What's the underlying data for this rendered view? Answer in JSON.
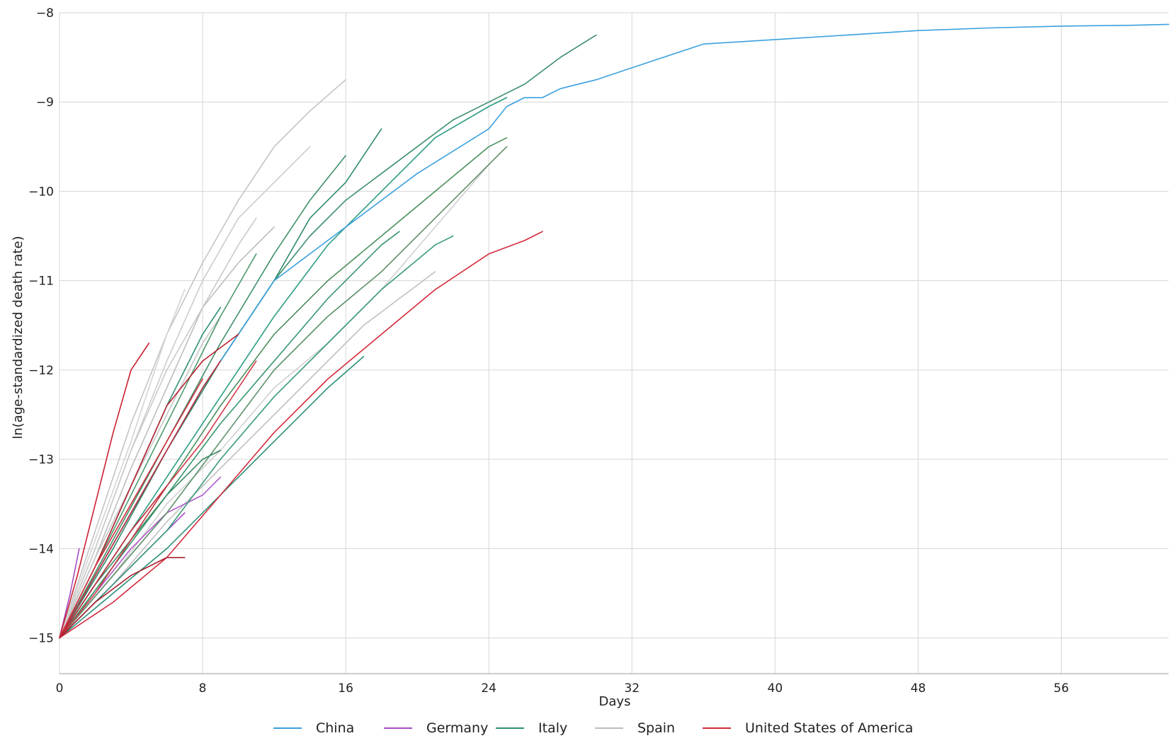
{
  "chart_data": {
    "type": "line",
    "title": "",
    "xlabel": "Days",
    "ylabel": "ln(age-standardized death rate)",
    "xlim": [
      0,
      62
    ],
    "ylim": [
      -15.4,
      -8
    ],
    "xticks": [
      0,
      8,
      16,
      24,
      32,
      40,
      48,
      56
    ],
    "yticks": [
      -15,
      -14,
      -13,
      -12,
      -11,
      -10,
      -9,
      -8
    ],
    "grid": true,
    "legend_position": "bottom-center",
    "legend": [
      {
        "name": "China",
        "color": "#3aa0de"
      },
      {
        "name": "Germany",
        "color": "#a64dc4"
      },
      {
        "name": "Italy",
        "color": "#2f8f73"
      },
      {
        "name": "Spain",
        "color": "#bdbdbd"
      },
      {
        "name": "United States of America",
        "color": "#d42b3c"
      }
    ],
    "series": [
      {
        "group": "China",
        "color": "#3aa0de",
        "x": [
          0,
          4,
          8,
          12,
          16,
          20,
          24,
          25,
          26,
          27,
          28,
          30,
          33,
          36,
          40,
          44,
          48,
          52,
          56,
          60,
          62
        ],
        "y": [
          -15,
          -13.6,
          -12.2,
          -11.0,
          -10.4,
          -9.8,
          -9.3,
          -9.05,
          -8.95,
          -8.95,
          -8.85,
          -8.75,
          -8.55,
          -8.35,
          -8.3,
          -8.25,
          -8.2,
          -8.17,
          -8.15,
          -8.14,
          -8.13
        ]
      },
      {
        "group": "Italy",
        "color": "#3d8f6c",
        "x": [
          0,
          2,
          4,
          6,
          8,
          10,
          12,
          14,
          16,
          18,
          20,
          22,
          24,
          26,
          28,
          30
        ],
        "y": [
          -15,
          -14.3,
          -13.6,
          -12.9,
          -12.2,
          -11.6,
          -11.0,
          -10.5,
          -10.1,
          -9.8,
          -9.5,
          -9.2,
          -9.0,
          -8.8,
          -8.5,
          -8.25
        ]
      },
      {
        "group": "Italy",
        "color": "#2a9d83",
        "x": [
          0,
          3,
          6,
          9,
          12,
          15,
          18,
          21,
          24,
          25
        ],
        "y": [
          -15,
          -14.1,
          -13.2,
          -12.3,
          -11.4,
          -10.6,
          -10.0,
          -9.4,
          -9.05,
          -8.95
        ]
      },
      {
        "group": "Italy",
        "color": "#4a8f5c",
        "x": [
          0,
          3,
          6,
          9,
          12,
          15,
          18,
          21,
          24,
          25
        ],
        "y": [
          -15,
          -14.2,
          -13.3,
          -12.4,
          -11.6,
          -11.0,
          -10.5,
          -10.0,
          -9.5,
          -9.4
        ]
      },
      {
        "group": "Italy",
        "color": "#5a8f6a",
        "x": [
          0,
          3,
          6,
          9,
          12,
          15,
          18,
          21,
          24,
          25
        ],
        "y": [
          -15,
          -14.3,
          -13.6,
          -12.8,
          -12.0,
          -11.4,
          -10.9,
          -10.3,
          -9.7,
          -9.5
        ]
      },
      {
        "group": "Italy",
        "color": "#3a9a7a",
        "x": [
          0,
          3,
          6,
          9,
          12,
          15,
          18,
          21,
          22
        ],
        "y": [
          -15,
          -14.4,
          -13.8,
          -13.0,
          -12.3,
          -11.7,
          -11.1,
          -10.6,
          -10.5
        ]
      },
      {
        "group": "Italy",
        "color": "#2f8a6d",
        "x": [
          0,
          3,
          6,
          9,
          12,
          14,
          16,
          18
        ],
        "y": [
          -15,
          -14.0,
          -12.9,
          -11.9,
          -11.0,
          -10.3,
          -9.9,
          -9.3
        ]
      },
      {
        "group": "Italy",
        "color": "#3f8f67",
        "x": [
          0,
          3,
          6,
          9,
          12,
          14,
          16
        ],
        "y": [
          -15,
          -13.9,
          -12.8,
          -11.7,
          -10.7,
          -10.1,
          -9.6
        ]
      },
      {
        "group": "Italy",
        "color": "#36966e",
        "x": [
          0,
          3,
          6,
          9,
          12,
          15,
          18,
          19
        ],
        "y": [
          -15,
          -14.2,
          -13.4,
          -12.6,
          -11.9,
          -11.2,
          -10.6,
          -10.45
        ]
      },
      {
        "group": "Italy",
        "color": "#2b9078",
        "x": [
          0,
          3,
          6,
          9,
          12,
          15,
          17
        ],
        "y": [
          -15,
          -14.5,
          -14.0,
          -13.4,
          -12.8,
          -12.2,
          -11.85
        ]
      },
      {
        "group": "Italy",
        "color": "#4c9a6e",
        "x": [
          0,
          3,
          6,
          9,
          11
        ],
        "y": [
          -15,
          -13.8,
          -12.6,
          -11.4,
          -10.7
        ]
      },
      {
        "group": "Italy",
        "color": "#2f8f73",
        "x": [
          0,
          2,
          4,
          6,
          8,
          9
        ],
        "y": [
          -15,
          -14.2,
          -13.3,
          -12.4,
          -11.6,
          -11.3
        ]
      },
      {
        "group": "Italy",
        "color": "#3a8a62",
        "x": [
          0,
          2,
          4,
          6,
          8,
          9
        ],
        "y": [
          -15,
          -14.4,
          -13.9,
          -13.4,
          -13.0,
          -12.9
        ]
      },
      {
        "group": "Spain",
        "color": "#c4c4c4",
        "x": [
          0,
          2,
          4,
          6,
          8,
          10,
          12,
          14,
          16
        ],
        "y": [
          -15,
          -13.8,
          -12.6,
          -11.6,
          -10.8,
          -10.1,
          -9.5,
          -9.1,
          -8.75
        ]
      },
      {
        "group": "Spain",
        "color": "#cccccc",
        "x": [
          0,
          2,
          4,
          6,
          8,
          10,
          12,
          14
        ],
        "y": [
          -15,
          -14.0,
          -12.9,
          -11.9,
          -11.0,
          -10.3,
          -9.9,
          -9.5
        ]
      },
      {
        "group": "Spain",
        "color": "#bdbdbd",
        "x": [
          0,
          2,
          4,
          6,
          8,
          10,
          12
        ],
        "y": [
          -15,
          -14.1,
          -13.1,
          -12.2,
          -11.3,
          -10.8,
          -10.4
        ]
      },
      {
        "group": "Spain",
        "color": "#c9c9c9",
        "x": [
          0,
          2,
          4,
          6,
          8,
          10,
          11
        ],
        "y": [
          -15,
          -14.0,
          -12.9,
          -12.0,
          -11.3,
          -10.6,
          -10.3
        ]
      },
      {
        "group": "Spain",
        "color": "#d0d0d0",
        "x": [
          0,
          3,
          6,
          9,
          12,
          15,
          18,
          21,
          24
        ],
        "y": [
          -15,
          -14.3,
          -13.5,
          -12.9,
          -12.2,
          -11.7,
          -11.1,
          -10.4,
          -9.7
        ]
      },
      {
        "group": "Spain",
        "color": "#c0c0c0",
        "x": [
          0,
          3,
          6,
          9,
          12,
          15,
          17,
          19,
          21
        ],
        "y": [
          -15,
          -14.4,
          -13.7,
          -13.1,
          -12.5,
          -11.9,
          -11.5,
          -11.2,
          -10.9
        ]
      },
      {
        "group": "Spain",
        "color": "#d4d4d4",
        "x": [
          0,
          2,
          4,
          6,
          7
        ],
        "y": [
          -15,
          -13.9,
          -12.8,
          -11.6,
          -11.1
        ]
      },
      {
        "group": "Spain",
        "color": "#c6c6c6",
        "x": [
          0,
          2,
          4,
          6,
          8,
          9
        ],
        "y": [
          -15,
          -14.1,
          -13.3,
          -12.5,
          -11.7,
          -11.4
        ]
      },
      {
        "group": "United States of America",
        "color": "#d42b3c",
        "x": [
          0,
          3,
          6,
          9,
          12,
          15,
          18,
          21,
          24,
          26,
          27
        ],
        "y": [
          -15,
          -14.6,
          -14.1,
          -13.4,
          -12.7,
          -12.1,
          -11.6,
          -11.1,
          -10.7,
          -10.55,
          -10.45
        ]
      },
      {
        "group": "United States of America",
        "color": "#cc1f2f",
        "x": [
          0,
          1,
          2,
          3,
          4,
          5
        ],
        "y": [
          -15,
          -14.3,
          -13.5,
          -12.7,
          -12.0,
          -11.7
        ]
      },
      {
        "group": "United States of America",
        "color": "#b82333",
        "x": [
          0,
          2,
          4,
          6,
          8,
          10
        ],
        "y": [
          -15,
          -14.2,
          -13.3,
          -12.4,
          -11.9,
          -11.6
        ]
      },
      {
        "group": "United States of America",
        "color": "#d13a48",
        "x": [
          0,
          2,
          4,
          6,
          8,
          10,
          11
        ],
        "y": [
          -15,
          -14.5,
          -13.9,
          -13.3,
          -12.8,
          -12.2,
          -11.9
        ]
      },
      {
        "group": "United States of America",
        "color": "#c22a3a",
        "x": [
          0,
          2,
          4,
          6,
          8,
          9
        ],
        "y": [
          -15,
          -14.3,
          -13.6,
          -12.9,
          -12.2,
          -11.9
        ]
      },
      {
        "group": "United States of America",
        "color": "#a81e2d",
        "x": [
          0,
          2,
          4,
          6,
          7
        ],
        "y": [
          -15,
          -14.6,
          -14.3,
          -14.1,
          -14.1
        ]
      },
      {
        "group": "United States of America",
        "color": "#d43040",
        "x": [
          0,
          2,
          4,
          6,
          8
        ],
        "y": [
          -15,
          -14.2,
          -13.5,
          -12.8,
          -12.1
        ]
      },
      {
        "group": "United States of America",
        "color": "#bd2636",
        "x": [
          0,
          2,
          4,
          6
        ],
        "y": [
          -15,
          -14.4,
          -13.8,
          -13.3
        ]
      },
      {
        "group": "Germany",
        "color": "#a64dc4",
        "x": [
          0,
          0.6,
          1.1
        ],
        "y": [
          -15,
          -14.5,
          -14.0
        ]
      },
      {
        "group": "Germany",
        "color": "#9c4bbf",
        "x": [
          0,
          2,
          4,
          6,
          7
        ],
        "y": [
          -15,
          -14.6,
          -14.2,
          -13.8,
          -13.6
        ]
      },
      {
        "group": "Germany",
        "color": "#b05ac9",
        "x": [
          0,
          2,
          4,
          6,
          8,
          9
        ],
        "y": [
          -15,
          -14.5,
          -14.0,
          -13.6,
          -13.4,
          -13.2
        ]
      }
    ]
  }
}
